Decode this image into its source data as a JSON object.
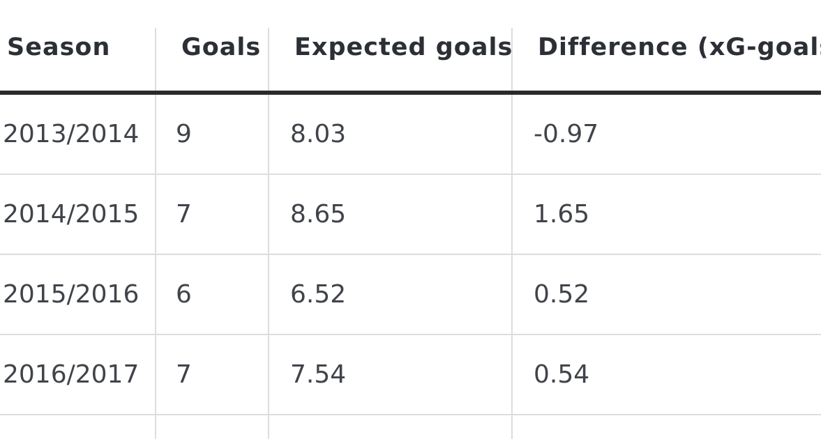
{
  "table": {
    "headers": [
      "Season",
      "Goals",
      "Expected goals",
      "Difference (xG-goals)"
    ],
    "rows": [
      {
        "season": "2013/2014",
        "goals": "9",
        "expected_goals": "8.03",
        "difference": "-0.97"
      },
      {
        "season": "2014/2015",
        "goals": "7",
        "expected_goals": "8.65",
        "difference": "1.65"
      },
      {
        "season": "2015/2016",
        "goals": "6",
        "expected_goals": "6.52",
        "difference": "0.52"
      },
      {
        "season": "2016/2017",
        "goals": "7",
        "expected_goals": "7.54",
        "difference": "0.54"
      }
    ]
  }
}
